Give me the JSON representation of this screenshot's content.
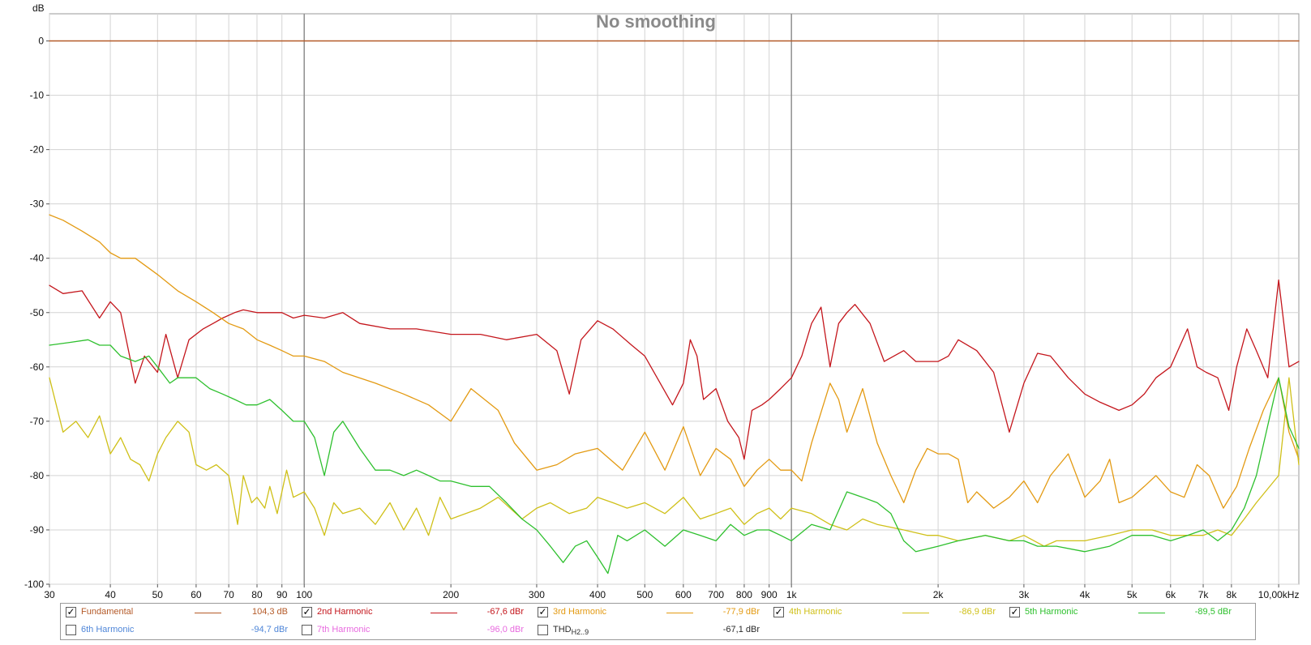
{
  "chart_data": {
    "type": "line",
    "title": "No smoothing",
    "ylabel": "dB",
    "ylim": [
      -100,
      5
    ],
    "xlim": [
      30,
      11000
    ],
    "xscale": "log",
    "grid": true,
    "legend_placement": "bottom",
    "y_ticks": [
      0,
      -10,
      -20,
      -30,
      -40,
      -50,
      -60,
      -70,
      -80,
      -90,
      -100
    ],
    "y_tick_labels": [
      "0",
      "-10",
      "-20",
      "-30",
      "-40",
      "-50",
      "-60",
      "-70",
      "-80",
      "-90",
      "-100"
    ],
    "x_ticks": [
      30,
      40,
      50,
      60,
      70,
      80,
      90,
      100,
      200,
      300,
      400,
      500,
      600,
      700,
      800,
      900,
      1000,
      2000,
      3000,
      4000,
      5000,
      6000,
      7000,
      8000,
      10000
    ],
    "x_tick_labels": [
      "30",
      "40",
      "50",
      "60",
      "70",
      "80",
      "90",
      "100",
      "200",
      "300",
      "400",
      "500",
      "600",
      "700",
      "800",
      "900",
      "1k",
      "2k",
      "3k",
      "4k",
      "5k",
      "6k",
      "7k",
      "8k",
      "10,00kHz"
    ],
    "series": [
      {
        "name": "Fundamental",
        "value_text": "104,3 dB",
        "color": "#b45a28",
        "checked": true,
        "x": [
          30,
          11000
        ],
        "y": [
          0,
          0
        ]
      },
      {
        "name": "2nd Harmonic",
        "value_text": "-67,6 dBr",
        "color": "#c4161c",
        "checked": true,
        "x": [
          30,
          32,
          35,
          38,
          40,
          42,
          45,
          47,
          50,
          52,
          55,
          58,
          62,
          65,
          68,
          72,
          75,
          80,
          85,
          90,
          95,
          100,
          110,
          120,
          130,
          150,
          170,
          200,
          230,
          260,
          300,
          330,
          350,
          370,
          400,
          430,
          470,
          500,
          530,
          570,
          600,
          620,
          640,
          660,
          700,
          740,
          780,
          800,
          830,
          870,
          900,
          950,
          1000,
          1050,
          1100,
          1150,
          1200,
          1250,
          1300,
          1350,
          1450,
          1550,
          1700,
          1800,
          2000,
          2100,
          2200,
          2400,
          2600,
          2800,
          3000,
          3200,
          3400,
          3700,
          4000,
          4300,
          4700,
          5000,
          5300,
          5600,
          6000,
          6500,
          6800,
          7100,
          7500,
          7900,
          8200,
          8600,
          9000,
          9500,
          10000,
          10500,
          11000
        ],
        "y": [
          -45,
          -46.5,
          -46,
          -51,
          -48,
          -50,
          -63,
          -58,
          -61,
          -54,
          -62,
          -55,
          -53,
          -52,
          -51,
          -50,
          -49.5,
          -50,
          -50,
          -50,
          -51,
          -50.5,
          -51,
          -50,
          -52,
          -53,
          -53,
          -54,
          -54,
          -55,
          -54,
          -57,
          -65,
          -55,
          -51.5,
          -53,
          -56,
          -58,
          -62,
          -67,
          -63,
          -55,
          -58,
          -66,
          -64,
          -70,
          -73,
          -77,
          -68,
          -67,
          -66,
          -64,
          -62,
          -58,
          -52,
          -49,
          -60,
          -52,
          -50,
          -48.5,
          -52,
          -59,
          -57,
          -59,
          -59,
          -58,
          -55,
          -57,
          -61,
          -72,
          -63,
          -57.5,
          -58,
          -62,
          -65,
          -66.5,
          -68,
          -67,
          -65,
          -62,
          -60,
          -53,
          -60,
          -61,
          -62,
          -68,
          -60,
          -53,
          -57,
          -62,
          -44,
          -60,
          -59
        ]
      },
      {
        "name": "3rd Harmonic",
        "value_text": "-77,9 dBr",
        "color": "#e39a12",
        "checked": true,
        "x": [
          30,
          32,
          35,
          38,
          40,
          42,
          45,
          50,
          55,
          60,
          65,
          70,
          75,
          80,
          85,
          90,
          95,
          100,
          110,
          120,
          140,
          160,
          180,
          200,
          220,
          250,
          270,
          300,
          330,
          360,
          400,
          450,
          500,
          550,
          600,
          650,
          700,
          750,
          800,
          850,
          900,
          950,
          1000,
          1050,
          1100,
          1200,
          1250,
          1300,
          1400,
          1500,
          1600,
          1700,
          1800,
          1900,
          2000,
          2100,
          2200,
          2300,
          2400,
          2600,
          2800,
          3000,
          3200,
          3400,
          3700,
          4000,
          4300,
          4500,
          4700,
          5000,
          5300,
          5600,
          6000,
          6400,
          6800,
          7200,
          7700,
          8200,
          8700,
          9300,
          10000,
          10500,
          11000
        ],
        "y": [
          -32,
          -33,
          -35,
          -37,
          -39,
          -40,
          -40,
          -43,
          -46,
          -48,
          -50,
          -52,
          -53,
          -55,
          -56,
          -57,
          -58,
          -58,
          -59,
          -61,
          -63,
          -65,
          -67,
          -70,
          -64,
          -68,
          -74,
          -79,
          -78,
          -76,
          -75,
          -79,
          -72,
          -79,
          -71,
          -80,
          -75,
          -77,
          -82,
          -79,
          -77,
          -79,
          -79,
          -81,
          -74,
          -63,
          -66,
          -72,
          -64,
          -74,
          -80,
          -85,
          -79,
          -75,
          -76,
          -76,
          -77,
          -85,
          -83,
          -86,
          -84,
          -81,
          -85,
          -80,
          -76,
          -84,
          -81,
          -77,
          -85,
          -84,
          -82,
          -80,
          -83,
          -84,
          -78,
          -80,
          -86,
          -82,
          -75,
          -68,
          -62,
          -72,
          -77
        ]
      },
      {
        "name": "4th Harmonic",
        "value_text": "-86,9 dBr",
        "color": "#cfc018",
        "checked": true,
        "x": [
          30,
          32,
          34,
          36,
          38,
          40,
          42,
          44,
          46,
          48,
          50,
          52,
          55,
          58,
          60,
          63,
          66,
          70,
          73,
          75,
          78,
          80,
          83,
          85,
          88,
          92,
          95,
          100,
          105,
          110,
          115,
          120,
          130,
          140,
          150,
          160,
          170,
          180,
          190,
          200,
          230,
          250,
          280,
          300,
          320,
          350,
          380,
          400,
          430,
          460,
          500,
          550,
          600,
          650,
          700,
          750,
          800,
          850,
          900,
          950,
          1000,
          1100,
          1200,
          1300,
          1400,
          1500,
          1700,
          1900,
          2000,
          2200,
          2500,
          2800,
          3000,
          3300,
          3500,
          4000,
          4500,
          5000,
          5500,
          6000,
          6500,
          7000,
          7500,
          8000,
          8500,
          9000,
          10000,
          10500,
          11000
        ],
        "y": [
          -62,
          -72,
          -70,
          -73,
          -69,
          -76,
          -73,
          -77,
          -78,
          -81,
          -76,
          -73,
          -70,
          -72,
          -78,
          -79,
          -78,
          -80,
          -89,
          -80,
          -85,
          -84,
          -86,
          -82,
          -87,
          -79,
          -84,
          -83,
          -86,
          -91,
          -85,
          -87,
          -86,
          -89,
          -85,
          -90,
          -86,
          -91,
          -84,
          -88,
          -86,
          -84,
          -88,
          -86,
          -85,
          -87,
          -86,
          -84,
          -85,
          -86,
          -85,
          -87,
          -84,
          -88,
          -87,
          -86,
          -89,
          -87,
          -86,
          -88,
          -86,
          -87,
          -89,
          -90,
          -88,
          -89,
          -90,
          -91,
          -91,
          -92,
          -91,
          -92,
          -91,
          -93,
          -92,
          -92,
          -91,
          -90,
          -90,
          -91,
          -91,
          -91,
          -90,
          -91,
          -88,
          -85,
          -80,
          -62,
          -78
        ]
      },
      {
        "name": "5th Harmonic",
        "value_text": "-89,5 dBr",
        "color": "#2ec02e",
        "checked": true,
        "x": [
          30,
          33,
          36,
          38,
          40,
          42,
          45,
          48,
          50,
          53,
          55,
          58,
          60,
          64,
          68,
          72,
          76,
          80,
          85,
          90,
          95,
          100,
          105,
          110,
          115,
          120,
          130,
          140,
          150,
          160,
          170,
          180,
          190,
          200,
          220,
          240,
          260,
          280,
          300,
          320,
          340,
          360,
          380,
          400,
          420,
          440,
          460,
          500,
          550,
          600,
          650,
          700,
          750,
          800,
          850,
          900,
          950,
          1000,
          1100,
          1200,
          1300,
          1400,
          1500,
          1600,
          1700,
          1800,
          2000,
          2200,
          2500,
          2800,
          3000,
          3200,
          3500,
          4000,
          4500,
          5000,
          5500,
          6000,
          6500,
          7000,
          7500,
          8000,
          8500,
          9000,
          10000,
          10500,
          11000
        ],
        "y": [
          -56,
          -55.5,
          -55,
          -56,
          -56,
          -58,
          -59,
          -58,
          -60,
          -63,
          -62,
          -62,
          -62,
          -64,
          -65,
          -66,
          -67,
          -67,
          -66,
          -68,
          -70,
          -70,
          -73,
          -80,
          -72,
          -70,
          -75,
          -79,
          -79,
          -80,
          -79,
          -80,
          -81,
          -81,
          -82,
          -82,
          -85,
          -88,
          -90,
          -93,
          -96,
          -93,
          -92,
          -95,
          -98,
          -91,
          -92,
          -90,
          -93,
          -90,
          -91,
          -92,
          -89,
          -91,
          -90,
          -90,
          -91,
          -92,
          -89,
          -90,
          -83,
          -84,
          -85,
          -87,
          -92,
          -94,
          -93,
          -92,
          -91,
          -92,
          -92,
          -93,
          -93,
          -94,
          -93,
          -91,
          -91,
          -92,
          -91,
          -90,
          -92,
          -90,
          -86,
          -80,
          -62,
          -71,
          -75
        ]
      }
    ]
  },
  "legend": {
    "row1": [
      {
        "label": "Fundamental",
        "value": "104,3 dB",
        "checked": true,
        "text_color": "#b45a28",
        "value_color": "#b45a28",
        "line_color": "#b45a28"
      },
      {
        "label": "2nd Harmonic",
        "value": "-67,6 dBr",
        "checked": true,
        "text_color": "#c4161c",
        "value_color": "#c4161c",
        "line_color": "#c4161c"
      },
      {
        "label": "3rd Harmonic",
        "value": "-77,9 dBr",
        "checked": true,
        "text_color": "#e39a12",
        "value_color": "#e39a12",
        "line_color": "#e39a12"
      },
      {
        "label": "4th Harmonic",
        "value": "-86,9 dBr",
        "checked": true,
        "text_color": "#cfc018",
        "value_color": "#cfc018",
        "line_color": "#cfc018"
      },
      {
        "label": "5th Harmonic",
        "value": "-89,5 dBr",
        "checked": true,
        "text_color": "#2ec02e",
        "value_color": "#2ec02e",
        "line_color": "#2ec02e"
      }
    ],
    "row2": [
      {
        "label": "6th Harmonic",
        "value": "-94,7 dBr",
        "checked": false,
        "text_color": "#4f86d8",
        "value_color": "#4f86d8"
      },
      {
        "label": "7th Harmonic",
        "value": "-96,0 dBr",
        "checked": false,
        "text_color": "#e86adf",
        "value_color": "#e86adf"
      },
      {
        "label": "THD",
        "label_sub": "H2..9",
        "value": "-67,1 dBr",
        "checked": false,
        "text_color": "#2a2a2a",
        "value_color": "#2a2a2a"
      }
    ],
    "check_mark": "✓"
  }
}
